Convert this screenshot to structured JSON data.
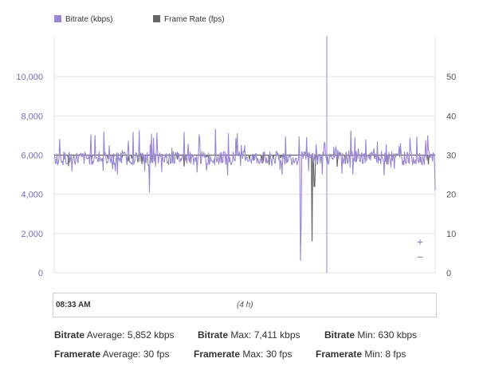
{
  "chart_data": {
    "type": "line",
    "legend_position": "top-left",
    "series": [
      {
        "name": "Bitrate (kbps)",
        "axis": "left",
        "color": "#9b87d1",
        "baseline": 5850,
        "spikes_down": [
          {
            "t": 0.647,
            "value": 630
          },
          {
            "t": 0.648,
            "value": 2400
          }
        ],
        "typical_min": 5000,
        "typical_max": 7411
      },
      {
        "name": "Frame Rate (fps)",
        "axis": "right",
        "color": "#666666",
        "baseline": 30,
        "spikes_down": [
          {
            "t": 0.677,
            "value": 8
          },
          {
            "t": 0.683,
            "value": 22
          }
        ]
      }
    ],
    "y_left": {
      "min": 0,
      "max": 12000,
      "ticks": [
        "0",
        "2,000",
        "4,000",
        "6,000",
        "8,000",
        "10,000"
      ],
      "tick_values": [
        0,
        2000,
        4000,
        6000,
        8000,
        10000
      ]
    },
    "y_right": {
      "min": 0,
      "max": 60,
      "ticks": [
        "0",
        "10",
        "20",
        "30",
        "40",
        "50"
      ],
      "tick_values": [
        0,
        10,
        20,
        30,
        40,
        50
      ]
    },
    "grid": true
  },
  "legend": {
    "bitrate_label": "Bitrate (kbps)",
    "bitrate_color": "#9b87d1",
    "framerate_label": "Frame Rate (fps)",
    "framerate_color": "#666666"
  },
  "zoom": {
    "in": "+",
    "out": "−"
  },
  "navigator": {
    "start_time": "08:33 AM",
    "duration": "(4 h)"
  },
  "stats": {
    "bitrate_word": "Bitrate",
    "framerate_word": "Framerate",
    "bitrate_avg": " Average: 5,852 kbps",
    "bitrate_max": " Max: 7,411 kbps",
    "bitrate_min": " Min: 630 kbps",
    "framerate_avg": " Average: 30 fps",
    "framerate_max": " Max: 30 fps",
    "framerate_min": " Min: 8 fps"
  }
}
